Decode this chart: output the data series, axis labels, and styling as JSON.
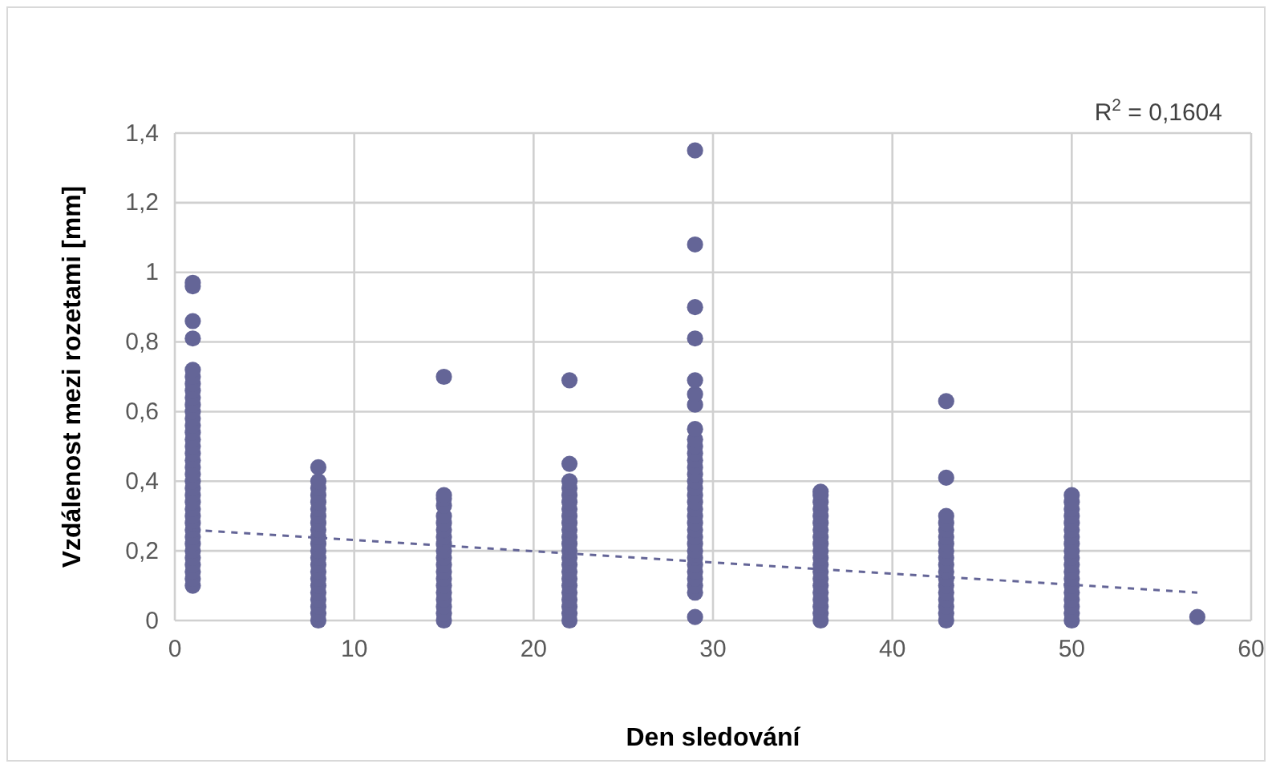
{
  "chart_data": {
    "type": "scatter",
    "xlabel": "Den sledování",
    "ylabel": "Vzdálenost mezi rozetami [mm]",
    "xlim": [
      0,
      60
    ],
    "xticks": [
      0,
      10,
      20,
      30,
      40,
      50,
      60
    ],
    "ylim": [
      0,
      1.4
    ],
    "yticks": [
      0,
      {
        "value": 0.2,
        "label": "0,2"
      },
      {
        "value": 0.4,
        "label": "0,4"
      },
      {
        "value": 0.6,
        "label": "0,6"
      },
      {
        "value": 0.8,
        "label": "0,8"
      },
      1,
      {
        "value": 1.2,
        "label": "1,2"
      },
      {
        "value": 1.4,
        "label": "1,4"
      }
    ],
    "grid": true,
    "marker": "circle",
    "annotations": [
      "R$^{2}$ = 0,1604"
    ],
    "series": [
      {
        "color": "#646597",
        "x": [
          1,
          1,
          1,
          1,
          1,
          1,
          1,
          1,
          1,
          1,
          1,
          1,
          1,
          1,
          1,
          1,
          1,
          1,
          1,
          1,
          1,
          1,
          1,
          1,
          1,
          1,
          1,
          1,
          1,
          1,
          1,
          1,
          1,
          1,
          1,
          1,
          8,
          8,
          8,
          8,
          8,
          8,
          8,
          8,
          8,
          8,
          8,
          8,
          8,
          8,
          8,
          8,
          8,
          8,
          8,
          8,
          8,
          8,
          15,
          15,
          15,
          15,
          15,
          15,
          15,
          15,
          15,
          15,
          15,
          15,
          15,
          15,
          15,
          15,
          15,
          15,
          15,
          15,
          22,
          22,
          22,
          22,
          22,
          22,
          22,
          22,
          22,
          22,
          22,
          22,
          22,
          22,
          22,
          22,
          22,
          22,
          22,
          22,
          22,
          22,
          22,
          29,
          29,
          29,
          29,
          29,
          29,
          29,
          29,
          29,
          29,
          29,
          29,
          29,
          29,
          29,
          29,
          29,
          29,
          29,
          29,
          29,
          29,
          29,
          29,
          29,
          29,
          29,
          29,
          29,
          29,
          29,
          29,
          36,
          36,
          36,
          36,
          36,
          36,
          36,
          36,
          36,
          36,
          36,
          36,
          36,
          36,
          36,
          36,
          36,
          36,
          36,
          36,
          43,
          43,
          43,
          43,
          43,
          43,
          43,
          43,
          43,
          43,
          43,
          43,
          43,
          43,
          43,
          43,
          43,
          43,
          50,
          50,
          50,
          50,
          50,
          50,
          50,
          50,
          50,
          50,
          50,
          50,
          50,
          50,
          50,
          50,
          50,
          50,
          50,
          57
        ],
        "values": [
          0.1,
          0.12,
          0.14,
          0.16,
          0.18,
          0.2,
          0.22,
          0.24,
          0.26,
          0.28,
          0.3,
          0.32,
          0.34,
          0.36,
          0.38,
          0.4,
          0.42,
          0.44,
          0.46,
          0.48,
          0.5,
          0.52,
          0.54,
          0.56,
          0.58,
          0.6,
          0.62,
          0.64,
          0.66,
          0.68,
          0.7,
          0.72,
          0.81,
          0.86,
          0.96,
          0.97,
          0,
          0.02,
          0.04,
          0.06,
          0.08,
          0.1,
          0.12,
          0.14,
          0.16,
          0.18,
          0.2,
          0.22,
          0.24,
          0.26,
          0.28,
          0.3,
          0.32,
          0.34,
          0.36,
          0.38,
          0.4,
          0.44,
          0,
          0.02,
          0.04,
          0.06,
          0.08,
          0.1,
          0.12,
          0.14,
          0.16,
          0.18,
          0.2,
          0.22,
          0.24,
          0.26,
          0.28,
          0.3,
          0.33,
          0.35,
          0.36,
          0.7,
          0,
          0.02,
          0.04,
          0.06,
          0.08,
          0.1,
          0.12,
          0.14,
          0.16,
          0.18,
          0.2,
          0.22,
          0.24,
          0.26,
          0.28,
          0.3,
          0.32,
          0.34,
          0.36,
          0.38,
          0.4,
          0.45,
          0.69,
          0.01,
          0.08,
          0.1,
          0.12,
          0.14,
          0.16,
          0.18,
          0.2,
          0.22,
          0.24,
          0.26,
          0.28,
          0.3,
          0.32,
          0.34,
          0.36,
          0.38,
          0.4,
          0.42,
          0.44,
          0.46,
          0.48,
          0.5,
          0.52,
          0.55,
          0.62,
          0.65,
          0.69,
          0.81,
          0.9,
          1.08,
          1.35,
          0,
          0.02,
          0.04,
          0.06,
          0.08,
          0.1,
          0.12,
          0.14,
          0.16,
          0.18,
          0.2,
          0.22,
          0.24,
          0.26,
          0.28,
          0.3,
          0.32,
          0.34,
          0.36,
          0.37,
          0,
          0.02,
          0.04,
          0.06,
          0.08,
          0.1,
          0.12,
          0.14,
          0.16,
          0.18,
          0.2,
          0.22,
          0.24,
          0.26,
          0.28,
          0.3,
          0.41,
          0.63,
          0,
          0.02,
          0.04,
          0.06,
          0.08,
          0.1,
          0.12,
          0.14,
          0.16,
          0.18,
          0.2,
          0.22,
          0.24,
          0.26,
          0.28,
          0.3,
          0.32,
          0.34,
          0.36,
          0.01
        ]
      },
      {
        "type": "line",
        "color": "#646597",
        "line_style": "dashed",
        "marker": "none",
        "x": [
          1,
          57
        ],
        "values": [
          0.26,
          0.08
        ]
      }
    ]
  }
}
